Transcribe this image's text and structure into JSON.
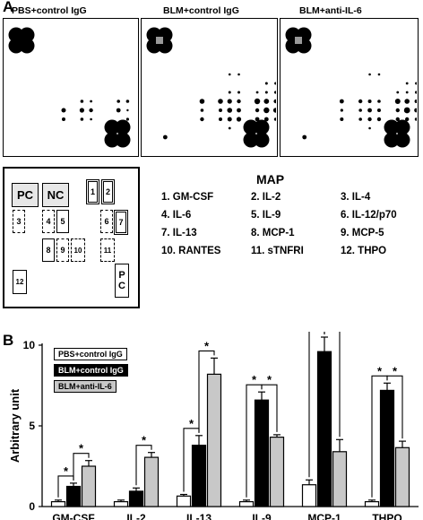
{
  "panel_a": {
    "letter": "A",
    "array_titles": [
      "PBS+control IgG",
      "BLM+control IgG",
      "BLM+anti-IL-6"
    ],
    "map_title": "MAP",
    "map_cells": {
      "pc_top": "PC",
      "nc": "NC",
      "c1": "1",
      "c2": "2",
      "c3": "3",
      "c4": "4",
      "c5": "5",
      "c6": "6",
      "c7": "7",
      "c8": "8",
      "c9": "9",
      "c10": "10",
      "c11": "11",
      "c12": "12",
      "pc_bottom_1": "P",
      "pc_bottom_2": "C"
    },
    "legend": [
      "1. GM-CSF",
      "2. IL-2",
      "3. IL-4",
      "4. IL-6",
      "5. IL-9",
      "6. IL-12/p70",
      "7. IL-13",
      "8. MCP-1",
      "9. MCP-5",
      "10. RANTES",
      "11. sTNFRI",
      "12. THPO"
    ]
  },
  "panel_b": {
    "letter": "B",
    "legend": [
      "PBS+control IgG",
      "BLM+control IgG",
      "BLM+anti-IL-6"
    ]
  },
  "colors": {
    "pbs": "#ffffff",
    "blm": "#000000",
    "anti": "#c8c8c8"
  },
  "chart_data": {
    "type": "bar",
    "ylabel": "Arbitrary unit",
    "ylim": [
      0,
      10
    ],
    "yticks": [
      0,
      5,
      10
    ],
    "categories": [
      "GM-CSF",
      "IL-2",
      "IL-13",
      "IL-9",
      "MCP-1",
      "THPO"
    ],
    "series": [
      {
        "name": "PBS+control IgG",
        "values": [
          0.3,
          0.3,
          0.65,
          0.3,
          1.35,
          0.3
        ],
        "errors": [
          0.1,
          0.1,
          0.1,
          0.1,
          0.3,
          0.1
        ]
      },
      {
        "name": "BLM+control IgG",
        "values": [
          1.25,
          0.95,
          3.8,
          6.6,
          9.6,
          7.2
        ],
        "errors": [
          0.2,
          0.2,
          0.6,
          0.5,
          0.9,
          0.45
        ]
      },
      {
        "name": "BLM+anti-IL-6",
        "values": [
          2.5,
          3.05,
          8.2,
          4.3,
          3.4,
          3.65
        ],
        "errors": [
          0.35,
          0.3,
          1.0,
          0.15,
          0.75,
          0.4
        ]
      }
    ],
    "significance": [
      {
        "category": 0,
        "pairs": [
          [
            0,
            1
          ],
          [
            1,
            2
          ]
        ]
      },
      {
        "category": 1,
        "pairs": [
          [
            1,
            2
          ]
        ]
      },
      {
        "category": 2,
        "pairs": [
          [
            0,
            1
          ],
          [
            1,
            2
          ]
        ]
      },
      {
        "category": 3,
        "pairs": [
          [
            0,
            1
          ],
          [
            1,
            2
          ]
        ]
      },
      {
        "category": 4,
        "pairs": [
          [
            0,
            1
          ],
          [
            1,
            2
          ]
        ]
      },
      {
        "category": 5,
        "pairs": [
          [
            0,
            1
          ],
          [
            1,
            2
          ]
        ]
      }
    ],
    "significance_label": "*"
  }
}
